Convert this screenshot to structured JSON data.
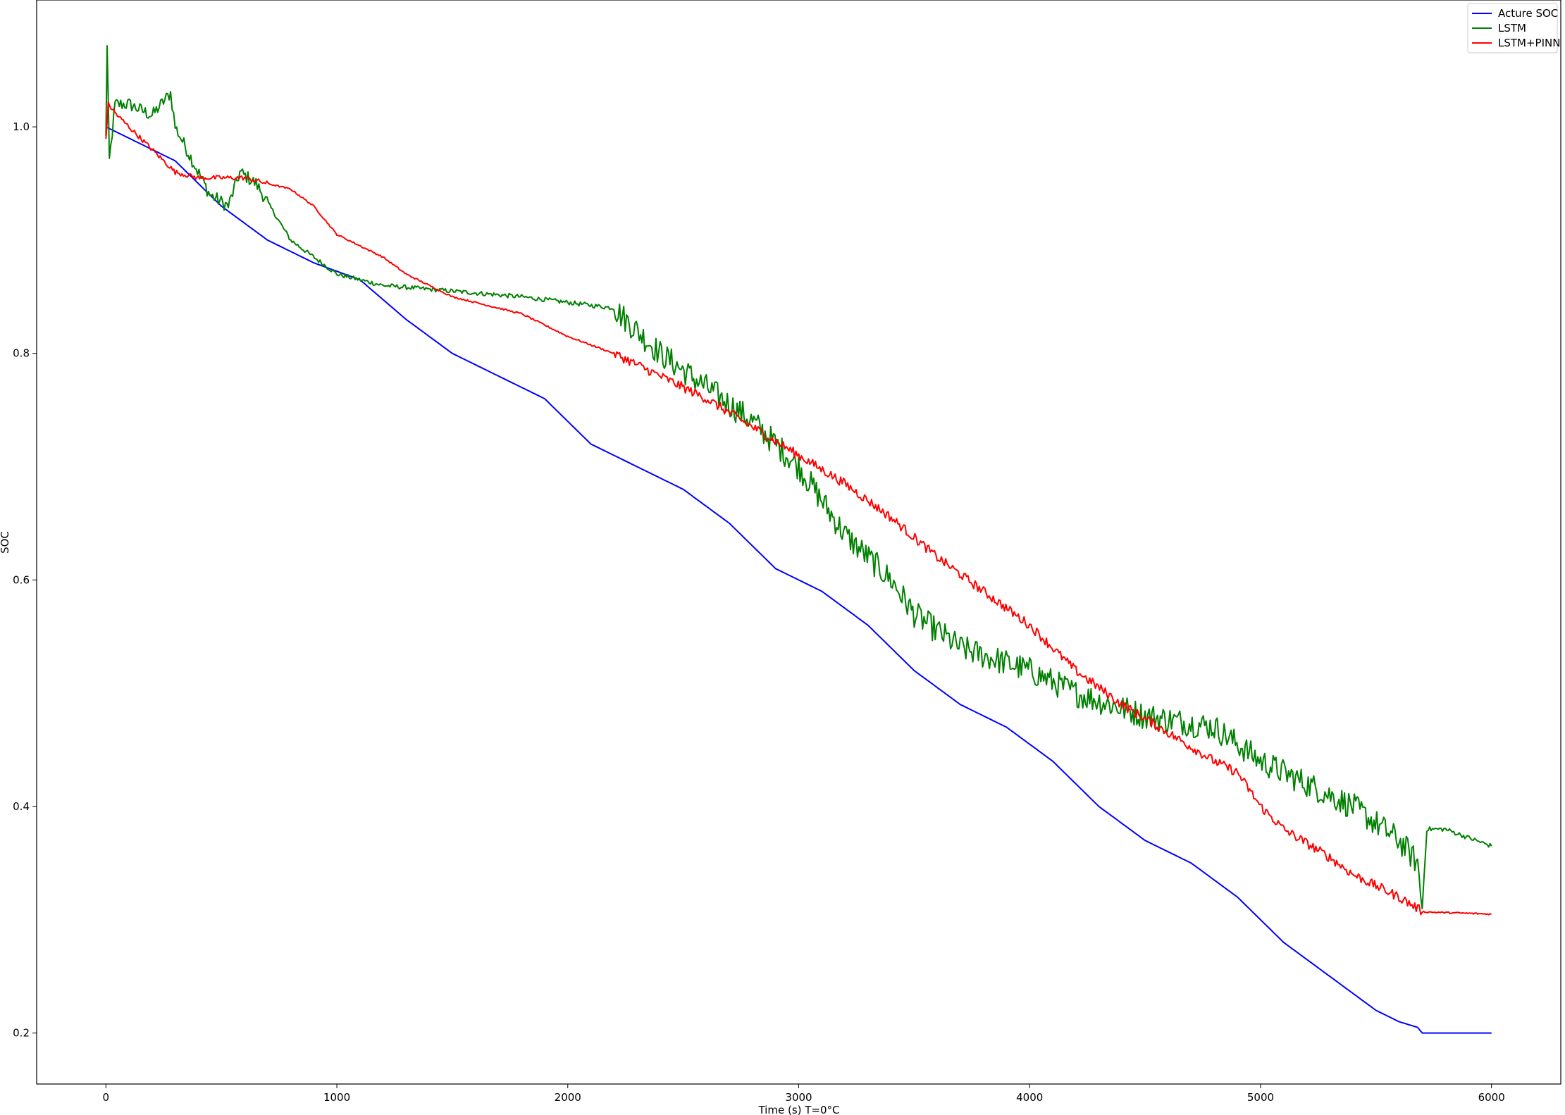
{
  "chart_data": {
    "type": "line",
    "title": "",
    "xlabel": "Time (s) T=0°C",
    "ylabel": "SOC",
    "xlim": [
      -300,
      6300
    ],
    "ylim": [
      0.155,
      1.112
    ],
    "xticks": [
      0,
      1000,
      2000,
      3000,
      4000,
      5000,
      6000
    ],
    "xtick_labels": [
      "0",
      "1000",
      "2000",
      "3000",
      "4000",
      "5000",
      "6000"
    ],
    "yticks": [
      0.2,
      0.4,
      0.6,
      0.8,
      1.0
    ],
    "ytick_labels": [
      "0.2",
      "0.4",
      "0.6",
      "0.8",
      "1.0"
    ],
    "grid": false,
    "legend_position": "top-right",
    "series": [
      {
        "name": "Acture SOC",
        "color": "#0000ff",
        "noise": 0,
        "points": [
          [
            0,
            1.0
          ],
          [
            100,
            0.99
          ],
          [
            300,
            0.97
          ],
          [
            500,
            0.93
          ],
          [
            700,
            0.9
          ],
          [
            900,
            0.88
          ],
          [
            1100,
            0.865
          ],
          [
            1300,
            0.83
          ],
          [
            1500,
            0.8
          ],
          [
            1700,
            0.78
          ],
          [
            1900,
            0.76
          ],
          [
            2100,
            0.72
          ],
          [
            2300,
            0.7
          ],
          [
            2500,
            0.68
          ],
          [
            2700,
            0.65
          ],
          [
            2900,
            0.61
          ],
          [
            3100,
            0.59
          ],
          [
            3300,
            0.56
          ],
          [
            3500,
            0.52
          ],
          [
            3700,
            0.49
          ],
          [
            3900,
            0.47
          ],
          [
            4100,
            0.44
          ],
          [
            4300,
            0.4
          ],
          [
            4500,
            0.37
          ],
          [
            4700,
            0.35
          ],
          [
            4900,
            0.32
          ],
          [
            5100,
            0.28
          ],
          [
            5300,
            0.25
          ],
          [
            5500,
            0.22
          ],
          [
            5600,
            0.21
          ],
          [
            5680,
            0.205
          ],
          [
            5700,
            0.2
          ],
          [
            6000,
            0.2
          ]
        ]
      },
      {
        "name": "LSTM",
        "color": "#008000",
        "noise": 1,
        "points": [
          [
            0,
            0.99
          ],
          [
            5,
            1.07
          ],
          [
            15,
            0.97
          ],
          [
            40,
            1.02
          ],
          [
            100,
            1.02
          ],
          [
            200,
            1.01
          ],
          [
            280,
            1.03
          ],
          [
            300,
            1.0
          ],
          [
            350,
            0.98
          ],
          [
            450,
            0.94
          ],
          [
            530,
            0.93
          ],
          [
            580,
            0.96
          ],
          [
            650,
            0.95
          ],
          [
            800,
            0.9
          ],
          [
            1000,
            0.87
          ],
          [
            1200,
            0.86
          ],
          [
            1500,
            0.855
          ],
          [
            1800,
            0.85
          ],
          [
            2000,
            0.845
          ],
          [
            2200,
            0.84
          ],
          [
            2400,
            0.8
          ],
          [
            2600,
            0.77
          ],
          [
            2800,
            0.74
          ],
          [
            3000,
            0.7
          ],
          [
            3100,
            0.67
          ],
          [
            3200,
            0.64
          ],
          [
            3400,
            0.6
          ],
          [
            3500,
            0.57
          ],
          [
            3700,
            0.54
          ],
          [
            4000,
            0.52
          ],
          [
            4200,
            0.5
          ],
          [
            4500,
            0.48
          ],
          [
            4800,
            0.47
          ],
          [
            5000,
            0.44
          ],
          [
            5200,
            0.42
          ],
          [
            5400,
            0.4
          ],
          [
            5600,
            0.37
          ],
          [
            5680,
            0.35
          ],
          [
            5700,
            0.31
          ],
          [
            5720,
            0.38
          ],
          [
            5800,
            0.38
          ],
          [
            6000,
            0.365
          ]
        ]
      },
      {
        "name": "LSTM+PINN",
        "color": "#ff0000",
        "noise": 0.35,
        "points": [
          [
            0,
            0.99
          ],
          [
            10,
            1.02
          ],
          [
            50,
            1.01
          ],
          [
            100,
            1.0
          ],
          [
            200,
            0.98
          ],
          [
            300,
            0.96
          ],
          [
            400,
            0.955
          ],
          [
            600,
            0.955
          ],
          [
            800,
            0.945
          ],
          [
            900,
            0.93
          ],
          [
            1000,
            0.905
          ],
          [
            1200,
            0.885
          ],
          [
            1300,
            0.87
          ],
          [
            1500,
            0.85
          ],
          [
            1800,
            0.835
          ],
          [
            2000,
            0.815
          ],
          [
            2200,
            0.8
          ],
          [
            2400,
            0.78
          ],
          [
            2600,
            0.76
          ],
          [
            2800,
            0.735
          ],
          [
            3000,
            0.71
          ],
          [
            3200,
            0.685
          ],
          [
            3400,
            0.655
          ],
          [
            3600,
            0.62
          ],
          [
            3800,
            0.59
          ],
          [
            4000,
            0.56
          ],
          [
            4200,
            0.52
          ],
          [
            4400,
            0.49
          ],
          [
            4600,
            0.465
          ],
          [
            4800,
            0.44
          ],
          [
            4900,
            0.43
          ],
          [
            5000,
            0.4
          ],
          [
            5100,
            0.38
          ],
          [
            5300,
            0.355
          ],
          [
            5400,
            0.34
          ],
          [
            5500,
            0.33
          ],
          [
            5600,
            0.32
          ],
          [
            5680,
            0.31
          ],
          [
            5700,
            0.307
          ],
          [
            6000,
            0.305
          ]
        ]
      }
    ]
  }
}
